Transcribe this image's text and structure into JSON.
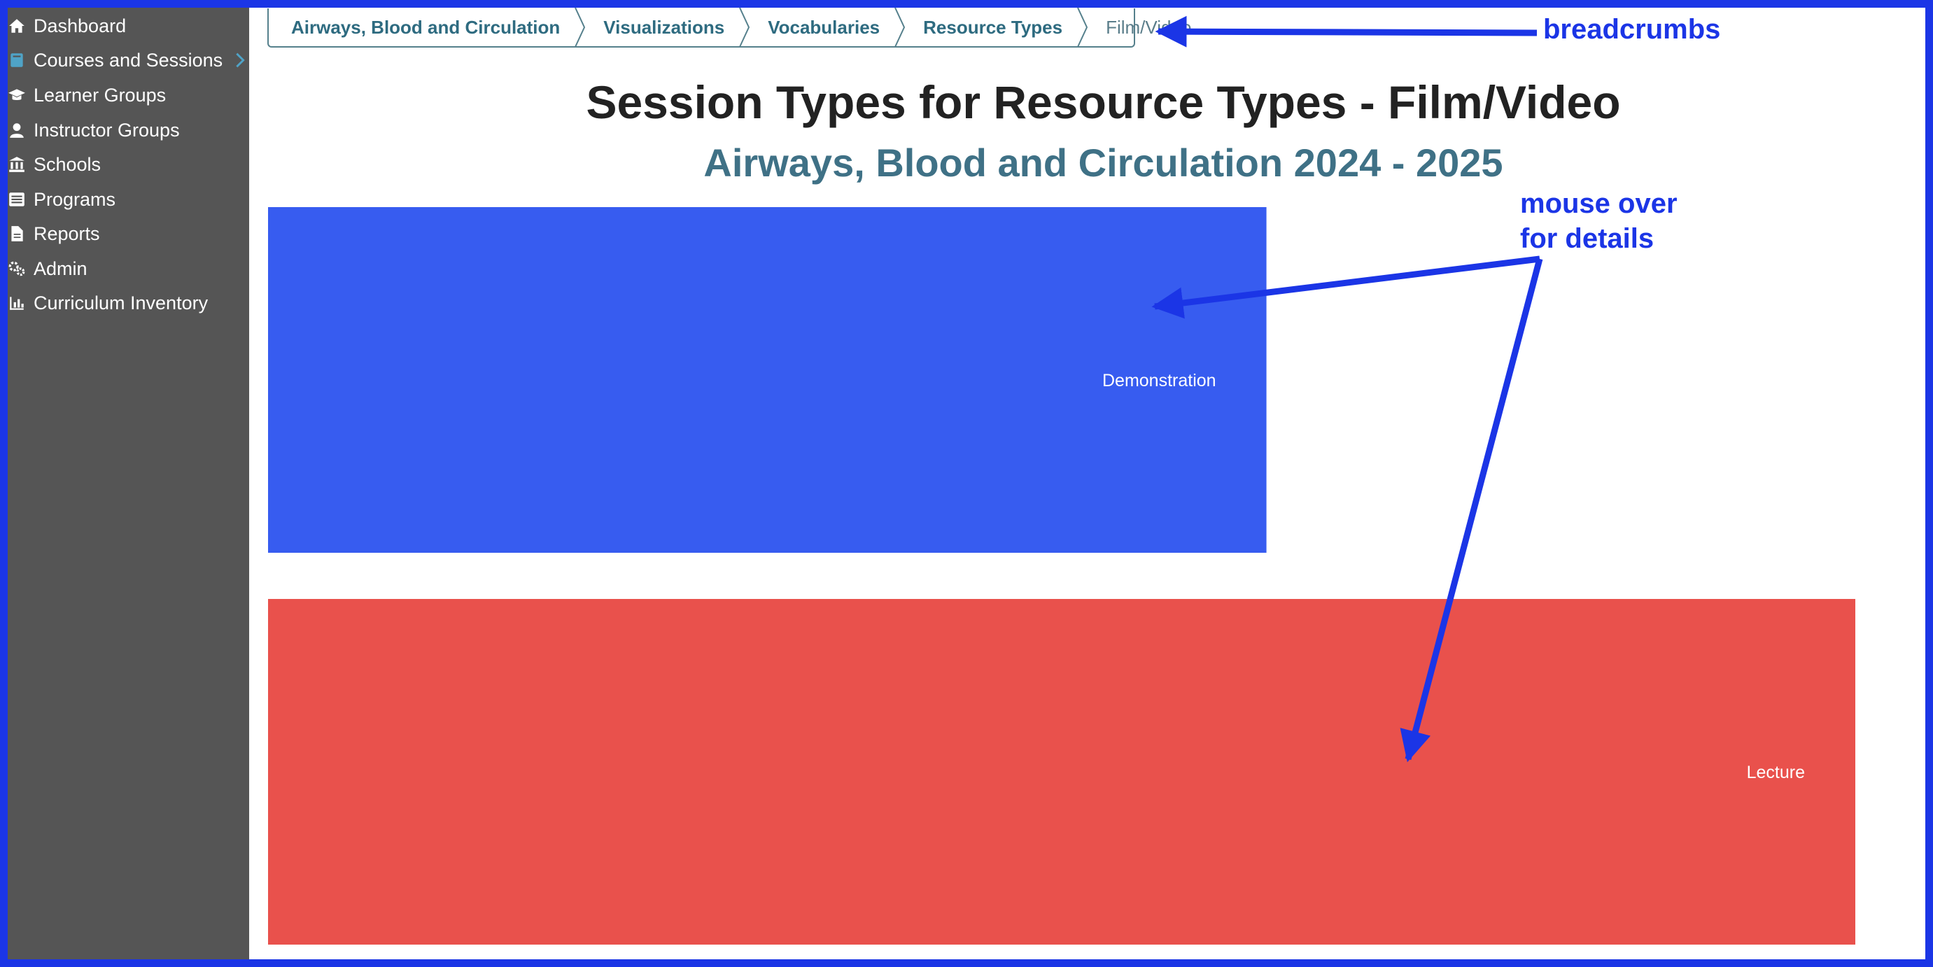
{
  "sidebar": {
    "items": [
      {
        "label": "Dashboard",
        "icon": "home-icon"
      },
      {
        "label": "Courses and Sessions",
        "icon": "book-icon"
      },
      {
        "label": "Learner Groups",
        "icon": "graduation-cap-icon"
      },
      {
        "label": "Instructor Groups",
        "icon": "user-icon"
      },
      {
        "label": "Schools",
        "icon": "university-icon"
      },
      {
        "label": "Programs",
        "icon": "list-icon"
      },
      {
        "label": "Reports",
        "icon": "file-icon"
      },
      {
        "label": "Admin",
        "icon": "gears-icon"
      },
      {
        "label": "Curriculum Inventory",
        "icon": "bar-chart-icon"
      }
    ]
  },
  "breadcrumbs": {
    "items": [
      "Airways, Blood and Circulation",
      "Visualizations",
      "Vocabularies",
      "Resource Types"
    ],
    "current": "Film/Video"
  },
  "header": {
    "title": "Session Types for Resource Types - Film/Video",
    "subtitle": "Airways, Blood and Circulation 2024 - 2025"
  },
  "chart_data": {
    "type": "bar",
    "orientation": "horizontal",
    "title": "Session Types for Resource Types - Film/Video",
    "subtitle": "Airways, Blood and Circulation 2024 - 2025",
    "categories": [
      "Demonstration",
      "Lecture"
    ],
    "values": [
      0.629,
      1.0
    ],
    "value_note_visible": false,
    "colors": [
      "#375cf0",
      "#e9514c"
    ],
    "axes_visible": false,
    "grid": false
  },
  "annotations": {
    "breadcrumbs_label": "breadcrumbs",
    "hover_label_line1": "mouse over",
    "hover_label_line2": "for details",
    "color": "#1b35e6"
  },
  "colors": {
    "sidebar_bg": "#555555",
    "breadcrumb_text": "#2e6b80",
    "subtitle_text": "#3f7186",
    "frame": "#1b35e6"
  }
}
